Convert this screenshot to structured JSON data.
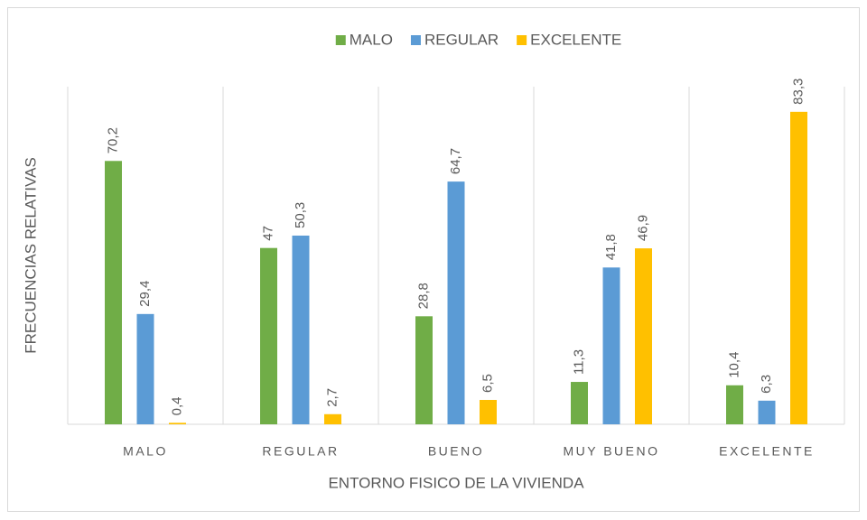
{
  "chart_data": {
    "type": "bar",
    "x_label": "ENTORNO FISICO DE LA VIVIENDA",
    "y_label": "FRECUENCIAS RELATIVAS",
    "categories": [
      "MALO",
      "REGULAR",
      "BUENO",
      "MUY BUENO",
      "EXCELENTE"
    ],
    "series": [
      {
        "name": "MALO",
        "color": "#70ad47",
        "values": [
          70.2,
          47,
          28.8,
          11.3,
          10.4
        ],
        "value_labels": [
          "70,2",
          "47",
          "28,8",
          "11,3",
          "10,4"
        ]
      },
      {
        "name": "REGULAR",
        "color": "#5b9bd5",
        "values": [
          29.4,
          50.3,
          64.7,
          41.8,
          6.3
        ],
        "value_labels": [
          "29,4",
          "50,3",
          "64,7",
          "41,8",
          "6,3"
        ]
      },
      {
        "name": "EXCELENTE",
        "color": "#ffc000",
        "values": [
          0.4,
          2.7,
          6.5,
          46.9,
          83.3
        ],
        "value_labels": [
          "0,4",
          "2,7",
          "6,5",
          "46,9",
          "83,3"
        ]
      }
    ],
    "ylim": [
      0,
      90
    ],
    "legend": "top"
  }
}
